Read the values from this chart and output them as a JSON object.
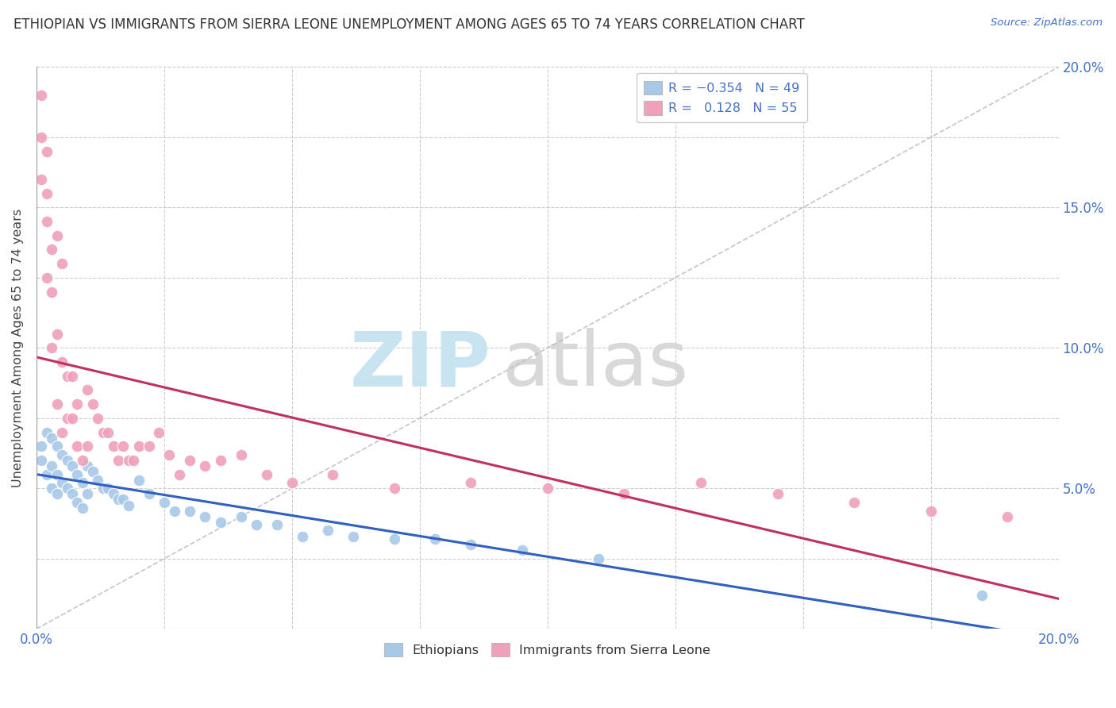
{
  "title": "ETHIOPIAN VS IMMIGRANTS FROM SIERRA LEONE UNEMPLOYMENT AMONG AGES 65 TO 74 YEARS CORRELATION CHART",
  "source": "Source: ZipAtlas.com",
  "ylabel": "Unemployment Among Ages 65 to 74 years",
  "xlim": [
    0.0,
    0.2
  ],
  "ylim": [
    0.0,
    0.2
  ],
  "ticks": [
    0.0,
    0.025,
    0.05,
    0.075,
    0.1,
    0.125,
    0.15,
    0.175,
    0.2
  ],
  "ethiopian_color": "#a8c8e8",
  "sierraleonean_color": "#f0a0b8",
  "trendline_ethiopian_color": "#3060c0",
  "trendline_sierraleonean_color": "#c03060",
  "background_color": "#ffffff",
  "grid_color": "#cccccc",
  "watermark_zip_color": "#c8e4f0",
  "watermark_atlas_color": "#d8d8d8",
  "ethiopian_x": [
    0.001,
    0.001,
    0.002,
    0.002,
    0.003,
    0.003,
    0.003,
    0.004,
    0.004,
    0.004,
    0.005,
    0.005,
    0.006,
    0.006,
    0.007,
    0.007,
    0.008,
    0.008,
    0.009,
    0.009,
    0.01,
    0.01,
    0.011,
    0.012,
    0.013,
    0.014,
    0.015,
    0.016,
    0.017,
    0.018,
    0.02,
    0.022,
    0.025,
    0.027,
    0.03,
    0.033,
    0.036,
    0.04,
    0.043,
    0.047,
    0.052,
    0.057,
    0.062,
    0.07,
    0.078,
    0.085,
    0.095,
    0.11,
    0.185
  ],
  "ethiopian_y": [
    0.065,
    0.06,
    0.07,
    0.055,
    0.068,
    0.058,
    0.05,
    0.065,
    0.055,
    0.048,
    0.062,
    0.052,
    0.06,
    0.05,
    0.058,
    0.048,
    0.055,
    0.045,
    0.052,
    0.043,
    0.058,
    0.048,
    0.056,
    0.053,
    0.05,
    0.05,
    0.048,
    0.046,
    0.046,
    0.044,
    0.053,
    0.048,
    0.045,
    0.042,
    0.042,
    0.04,
    0.038,
    0.04,
    0.037,
    0.037,
    0.033,
    0.035,
    0.033,
    0.032,
    0.032,
    0.03,
    0.028,
    0.025,
    0.012
  ],
  "sierraleonean_x": [
    0.001,
    0.001,
    0.001,
    0.002,
    0.002,
    0.002,
    0.002,
    0.003,
    0.003,
    0.003,
    0.004,
    0.004,
    0.004,
    0.005,
    0.005,
    0.005,
    0.006,
    0.006,
    0.007,
    0.007,
    0.008,
    0.008,
    0.009,
    0.01,
    0.01,
    0.011,
    0.012,
    0.013,
    0.014,
    0.015,
    0.016,
    0.017,
    0.018,
    0.019,
    0.02,
    0.022,
    0.024,
    0.026,
    0.028,
    0.03,
    0.033,
    0.036,
    0.04,
    0.045,
    0.05,
    0.058,
    0.07,
    0.085,
    0.1,
    0.115,
    0.13,
    0.145,
    0.16,
    0.175,
    0.19
  ],
  "sierraleonean_y": [
    0.19,
    0.175,
    0.16,
    0.17,
    0.155,
    0.145,
    0.125,
    0.135,
    0.12,
    0.1,
    0.14,
    0.105,
    0.08,
    0.13,
    0.095,
    0.07,
    0.09,
    0.075,
    0.09,
    0.075,
    0.08,
    0.065,
    0.06,
    0.085,
    0.065,
    0.08,
    0.075,
    0.07,
    0.07,
    0.065,
    0.06,
    0.065,
    0.06,
    0.06,
    0.065,
    0.065,
    0.07,
    0.062,
    0.055,
    0.06,
    0.058,
    0.06,
    0.062,
    0.055,
    0.052,
    0.055,
    0.05,
    0.052,
    0.05,
    0.048,
    0.052,
    0.048,
    0.045,
    0.042,
    0.04
  ]
}
